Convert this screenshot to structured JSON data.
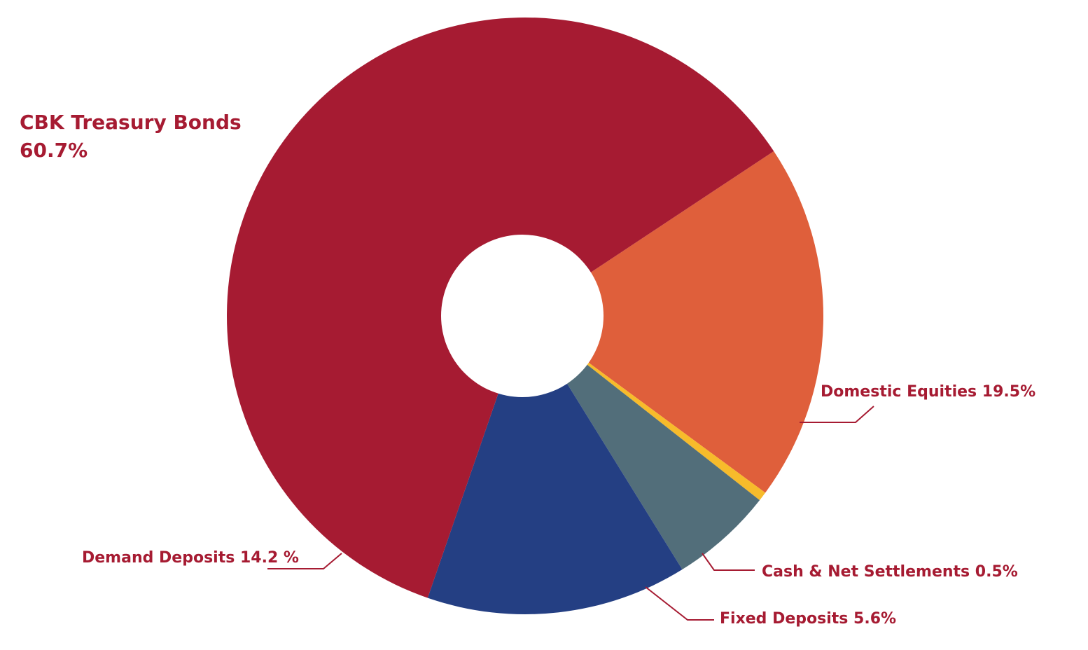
{
  "chart_data": {
    "type": "pie",
    "donut": true,
    "slices": [
      {
        "label": "CBK Treasury Bonds",
        "value": 60.7,
        "color": "#a61b32"
      },
      {
        "label": "Domestic Equities",
        "value": 19.5,
        "color": "#df5f3b"
      },
      {
        "label": "Cash & Net Settlements",
        "value": 0.5,
        "color": "#f7bb2b"
      },
      {
        "label": "Fixed Deposits",
        "value": 5.6,
        "color": "#526e7a"
      },
      {
        "label": "Demand Deposits",
        "value": 14.2,
        "color": "#243f83"
      }
    ],
    "labels": {
      "treasury_line1": "CBK Treasury Bonds",
      "treasury_line2": "60.7%",
      "equities": "Domestic Equities 19.5%",
      "cash": "Cash & Net Settlements 0.5%",
      "fixed": "Fixed Deposits 5.6%",
      "demand": "Demand Deposits 14.2 %"
    }
  }
}
